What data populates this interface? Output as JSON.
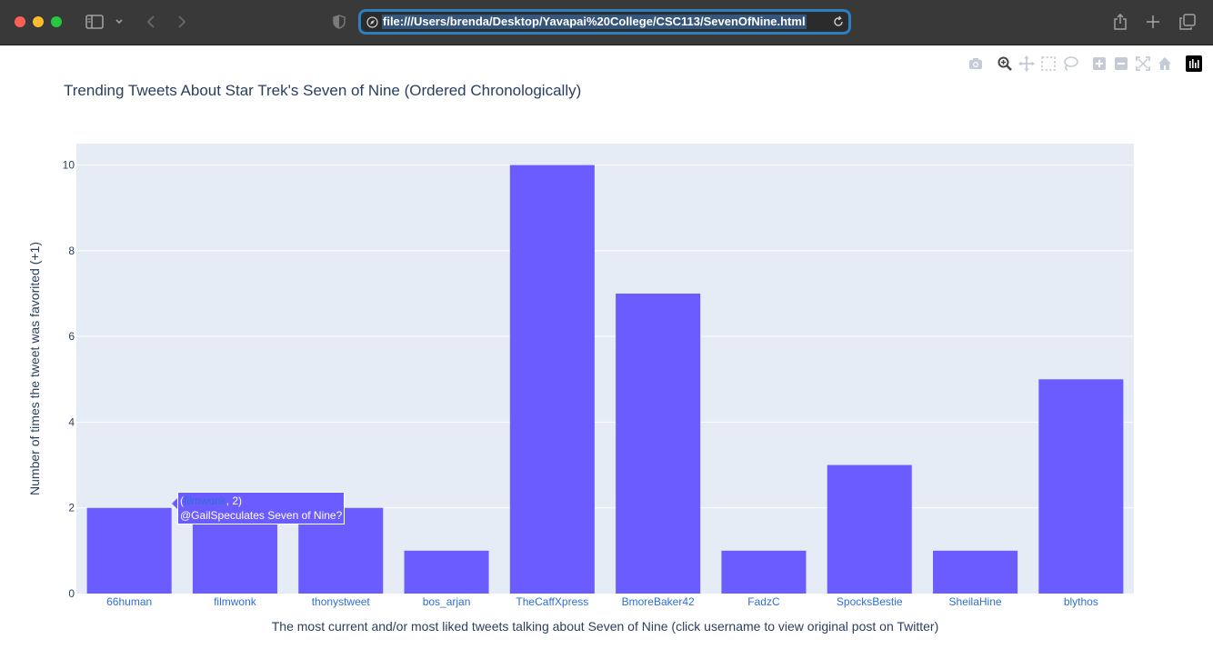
{
  "browser": {
    "url": "file:///Users/brenda/Desktop/Yavapai%20College/CSC113/SevenOfNine.html"
  },
  "modebar": {
    "icons": [
      "camera-icon",
      "zoom-icon",
      "pan-icon",
      "box-select-icon",
      "lasso-icon",
      "zoom-in-icon",
      "zoom-out-icon",
      "autoscale-icon",
      "reset-axes-icon",
      "plotly-logo-icon"
    ]
  },
  "chart_data": {
    "type": "bar",
    "title": "Trending Tweets About Star Trek's Seven of Nine (Ordered Chronologically)",
    "xlabel": "The most current and/or most liked tweets talking about Seven of Nine (click username to view original post on Twitter)",
    "ylabel": "Number of times the tweet was favorited (+1)",
    "categories": [
      "66human",
      "filmwonk",
      "thonystweet",
      "bos_arjan",
      "TheCaffXpress",
      "BmoreBaker42",
      "FadzC",
      "SpocksBestie",
      "SheilaHine",
      "blythos"
    ],
    "values": [
      2,
      2,
      2,
      1,
      10,
      7,
      1,
      3,
      1,
      5
    ],
    "ylim": [
      0,
      10.5
    ],
    "yticks": [
      0,
      2,
      4,
      6,
      8,
      10
    ],
    "grid": true,
    "bar_color": "#6b5cff",
    "plot_bg": "#e5ecf6",
    "tick_link_color": "#2f6fd1",
    "tooltip": {
      "open": "(",
      "value_text": ", 2)",
      "text": "@GailSpeculates Seven of Nine?"
    }
  }
}
